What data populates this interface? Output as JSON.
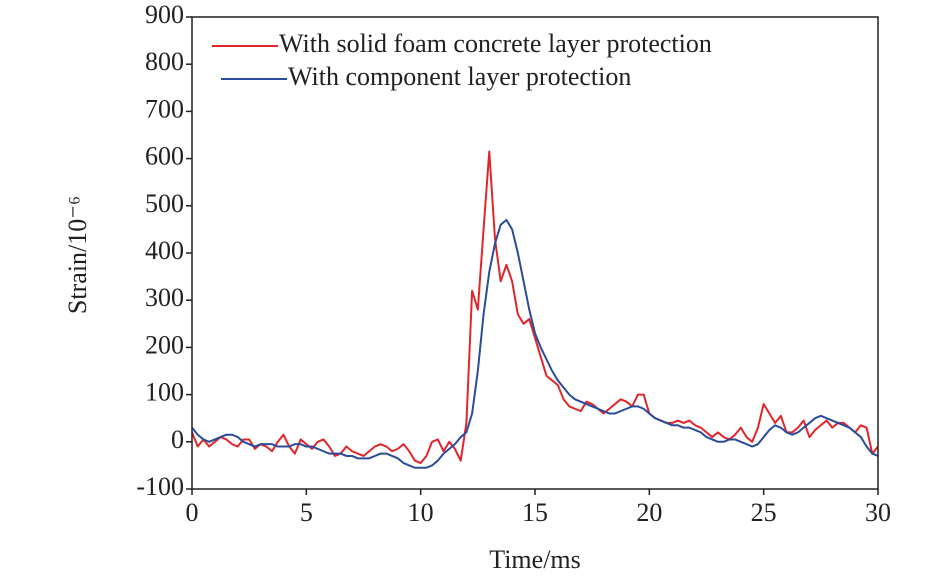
{
  "chart_data": {
    "type": "line",
    "xlabel": "Time/ms",
    "ylabel": "Strain/10⁻⁶",
    "xlim": [
      0,
      30
    ],
    "xticks": [
      0,
      5,
      10,
      15,
      20,
      25,
      30
    ],
    "ylim": [
      -100,
      900
    ],
    "yticks": [
      -100,
      0,
      100,
      200,
      300,
      400,
      500,
      600,
      700,
      800,
      900
    ],
    "legend": "upper left",
    "x": [
      0,
      0.25,
      0.5,
      0.75,
      1,
      1.25,
      1.5,
      1.75,
      2,
      2.25,
      2.5,
      2.75,
      3,
      3.25,
      3.5,
      3.75,
      4,
      4.25,
      4.5,
      4.75,
      5,
      5.25,
      5.5,
      5.75,
      6,
      6.25,
      6.5,
      6.75,
      7,
      7.25,
      7.5,
      7.75,
      8,
      8.25,
      8.5,
      8.75,
      9,
      9.25,
      9.5,
      9.75,
      10,
      10.25,
      10.5,
      10.75,
      11,
      11.25,
      11.5,
      11.75,
      12,
      12.25,
      12.5,
      12.75,
      13,
      13.25,
      13.5,
      13.75,
      14,
      14.25,
      14.5,
      14.75,
      15,
      15.25,
      15.5,
      15.75,
      16,
      16.25,
      16.5,
      16.75,
      17,
      17.25,
      17.5,
      17.75,
      18,
      18.25,
      18.5,
      18.75,
      19,
      19.25,
      19.5,
      19.75,
      20,
      20.25,
      20.5,
      20.75,
      21,
      21.25,
      21.5,
      21.75,
      22,
      22.25,
      22.5,
      22.75,
      23,
      23.25,
      23.5,
      23.75,
      24,
      24.25,
      24.5,
      24.75,
      25,
      25.25,
      25.5,
      25.75,
      26,
      26.25,
      26.5,
      26.75,
      27,
      27.25,
      27.5,
      27.75,
      28,
      28.25,
      28.5,
      28.75,
      29,
      29.25,
      29.5,
      29.75,
      30
    ],
    "series": [
      {
        "name": "With solid foam concrete layer protection",
        "color": "#e0262b",
        "values": [
          20,
          -10,
          5,
          -10,
          0,
          10,
          5,
          -5,
          -10,
          5,
          5,
          -15,
          -5,
          -10,
          -20,
          0,
          15,
          -10,
          -25,
          5,
          -5,
          -15,
          0,
          5,
          -10,
          -30,
          -25,
          -10,
          -20,
          -25,
          -30,
          -20,
          -10,
          -5,
          -10,
          -20,
          -15,
          -5,
          -20,
          -40,
          -45,
          -30,
          0,
          5,
          -20,
          0,
          -15,
          -40,
          40,
          320,
          280,
          450,
          615,
          430,
          340,
          375,
          340,
          270,
          250,
          260,
          220,
          180,
          140,
          130,
          120,
          90,
          75,
          70,
          65,
          85,
          80,
          70,
          60,
          70,
          80,
          90,
          85,
          75,
          100,
          100,
          60,
          50,
          45,
          40,
          40,
          45,
          40,
          45,
          35,
          30,
          20,
          10,
          20,
          10,
          5,
          15,
          30,
          10,
          0,
          30,
          80,
          60,
          40,
          55,
          20,
          20,
          30,
          45,
          10,
          25,
          35,
          45,
          30,
          40,
          40,
          30,
          20,
          35,
          30,
          -25,
          -10
        ]
      },
      {
        "name": "With component layer protection",
        "color": "#2a4c9a",
        "values": [
          30,
          15,
          5,
          0,
          5,
          10,
          15,
          15,
          10,
          0,
          -5,
          -10,
          -5,
          -5,
          -5,
          -10,
          -10,
          -10,
          -5,
          -5,
          -10,
          -10,
          -15,
          -20,
          -25,
          -25,
          -25,
          -30,
          -30,
          -35,
          -35,
          -35,
          -30,
          -25,
          -25,
          -30,
          -35,
          -45,
          -50,
          -55,
          -55,
          -55,
          -50,
          -40,
          -25,
          -15,
          -5,
          10,
          20,
          60,
          150,
          270,
          360,
          420,
          460,
          470,
          450,
          400,
          340,
          280,
          230,
          200,
          175,
          150,
          130,
          115,
          100,
          90,
          85,
          80,
          75,
          70,
          65,
          60,
          60,
          65,
          70,
          75,
          75,
          70,
          60,
          50,
          45,
          40,
          35,
          35,
          30,
          30,
          25,
          20,
          10,
          5,
          0,
          0,
          5,
          5,
          0,
          -5,
          -10,
          -5,
          10,
          25,
          35,
          30,
          20,
          15,
          20,
          30,
          40,
          50,
          55,
          50,
          45,
          40,
          35,
          30,
          20,
          10,
          -10,
          -25,
          -30
        ]
      }
    ]
  }
}
